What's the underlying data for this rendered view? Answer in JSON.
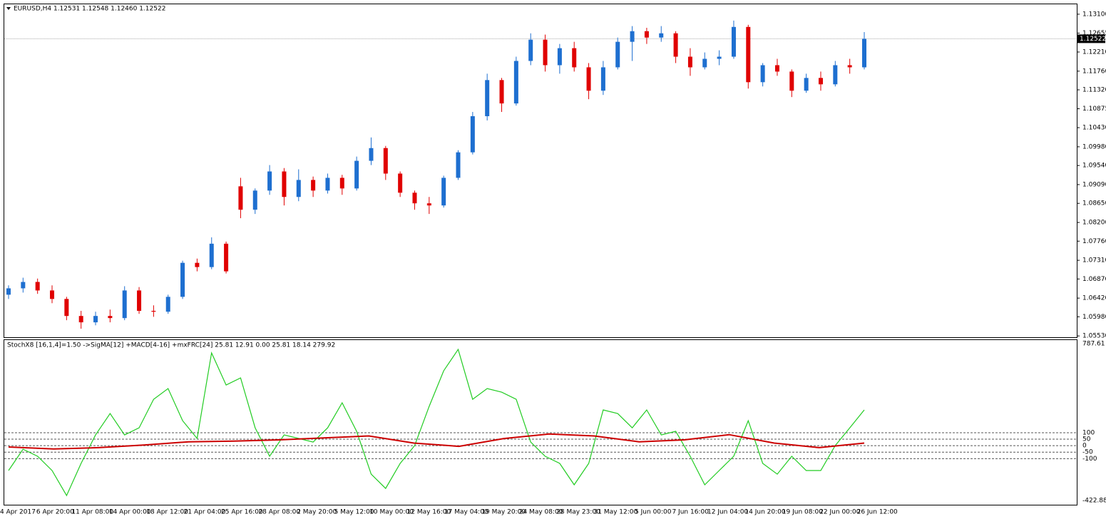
{
  "chart_data": [
    {
      "type": "candlestick",
      "title": "EURUSD,H4  1.12531 1.12548 1.12460 1.12522",
      "up_color": "#1e6fd0",
      "down_color": "#e00000",
      "ylim": [
        1.055,
        1.1335
      ],
      "yticks": [
        {
          "value": 1.131,
          "label": "1.13100"
        },
        {
          "value": 1.12655,
          "label": "1.12655"
        },
        {
          "value": 1.1221,
          "label": "1.12210"
        },
        {
          "value": 1.1176,
          "label": "1.11760"
        },
        {
          "value": 1.1132,
          "label": "1.11320"
        },
        {
          "value": 1.10875,
          "label": "1.10875"
        },
        {
          "value": 1.1043,
          "label": "1.10430"
        },
        {
          "value": 1.0998,
          "label": "1.09980"
        },
        {
          "value": 1.0954,
          "label": "1.09540"
        },
        {
          "value": 1.0909,
          "label": "1.09090"
        },
        {
          "value": 1.0865,
          "label": "1.08650"
        },
        {
          "value": 1.082,
          "label": "1.08200"
        },
        {
          "value": 1.0776,
          "label": "1.07760"
        },
        {
          "value": 1.0731,
          "label": "1.07310"
        },
        {
          "value": 1.0687,
          "label": "1.06870"
        },
        {
          "value": 1.0642,
          "label": "1.06420"
        },
        {
          "value": 1.0598,
          "label": "1.05980"
        },
        {
          "value": 1.0553,
          "label": "1.05530"
        }
      ],
      "current_price": {
        "value": 1.12522,
        "label": "1.12522"
      },
      "time_labels": [
        "4 Apr 2017",
        "6 Apr 20:00",
        "11 Apr 08:00",
        "14 Apr 00:00",
        "18 Apr 12:00",
        "21 Apr 04:00",
        "25 Apr 16:00",
        "28 Apr 08:00",
        "2 May 20:00",
        "5 May 12:00",
        "10 May 00:00",
        "12 May 16:00",
        "17 May 04:00",
        "19 May 20:00",
        "24 May 08:00",
        "28 May 23:00",
        "31 May 12:00",
        "5 Jun 00:00",
        "7 Jun 16:00",
        "12 Jun 04:00",
        "14 Jun 20:00",
        "19 Jun 08:00",
        "22 Jun 00:00",
        "26 Jun 12:00"
      ],
      "candles": [
        [
          1.065,
          1.0672,
          1.064,
          1.0665
        ],
        [
          1.0665,
          1.069,
          1.0655,
          1.068
        ],
        [
          1.068,
          1.0688,
          1.0652,
          1.066
        ],
        [
          1.066,
          1.0672,
          1.063,
          1.064
        ],
        [
          1.064,
          1.0645,
          1.059,
          1.06
        ],
        [
          1.06,
          1.0612,
          1.057,
          1.0585
        ],
        [
          1.0585,
          1.061,
          1.0578,
          1.06
        ],
        [
          1.06,
          1.0615,
          1.0585,
          1.0595
        ],
        [
          1.0595,
          1.067,
          1.059,
          1.066
        ],
        [
          1.066,
          1.0668,
          1.0605,
          1.0612
        ],
        [
          1.0612,
          1.0625,
          1.0598,
          1.061
        ],
        [
          1.061,
          1.065,
          1.0605,
          1.0645
        ],
        [
          1.0645,
          1.073,
          1.064,
          1.0725
        ],
        [
          1.0725,
          1.0735,
          1.0705,
          1.0715
        ],
        [
          1.0715,
          1.0785,
          1.071,
          1.077
        ],
        [
          1.077,
          1.0775,
          1.07,
          1.0705
        ],
        [
          1.0905,
          1.0925,
          1.083,
          1.085
        ],
        [
          1.085,
          1.09,
          1.084,
          1.0895
        ],
        [
          1.0895,
          1.0955,
          1.0885,
          1.094
        ],
        [
          1.094,
          1.0948,
          1.086,
          1.088
        ],
        [
          1.088,
          1.0945,
          1.087,
          1.092
        ],
        [
          1.092,
          1.0928,
          1.088,
          1.0895
        ],
        [
          1.0895,
          1.0935,
          1.0888,
          1.0925
        ],
        [
          1.0925,
          1.0932,
          1.0885,
          1.09
        ],
        [
          1.09,
          1.0975,
          1.0895,
          1.0965
        ],
        [
          1.0965,
          1.102,
          1.0955,
          1.0995
        ],
        [
          1.0995,
          1.1,
          1.092,
          1.0935
        ],
        [
          1.0935,
          1.094,
          1.088,
          1.089
        ],
        [
          1.089,
          1.0895,
          1.085,
          1.0865
        ],
        [
          1.0865,
          1.088,
          1.084,
          1.086
        ],
        [
          1.086,
          1.093,
          1.0855,
          1.0925
        ],
        [
          1.0925,
          1.099,
          1.092,
          1.0985
        ],
        [
          1.0985,
          1.108,
          1.098,
          1.107
        ],
        [
          1.107,
          1.117,
          1.106,
          1.1155
        ],
        [
          1.1155,
          1.116,
          1.108,
          1.11
        ],
        [
          1.11,
          1.121,
          1.1095,
          1.12
        ],
        [
          1.12,
          1.1265,
          1.119,
          1.125
        ],
        [
          1.125,
          1.1262,
          1.1175,
          1.119
        ],
        [
          1.119,
          1.124,
          1.117,
          1.123
        ],
        [
          1.123,
          1.1245,
          1.1175,
          1.1185
        ],
        [
          1.1185,
          1.1195,
          1.111,
          1.113
        ],
        [
          1.113,
          1.12,
          1.112,
          1.1185
        ],
        [
          1.1185,
          1.1255,
          1.118,
          1.1245
        ],
        [
          1.1245,
          1.1282,
          1.12,
          1.127
        ],
        [
          1.127,
          1.1278,
          1.124,
          1.1255
        ],
        [
          1.1255,
          1.1282,
          1.1245,
          1.1265
        ],
        [
          1.1265,
          1.127,
          1.1195,
          1.121
        ],
        [
          1.121,
          1.123,
          1.1165,
          1.1185
        ],
        [
          1.1185,
          1.122,
          1.118,
          1.1205
        ],
        [
          1.1205,
          1.1225,
          1.119,
          1.121
        ],
        [
          1.121,
          1.1295,
          1.1205,
          1.128
        ],
        [
          1.128,
          1.1285,
          1.1135,
          1.115
        ],
        [
          1.115,
          1.1195,
          1.114,
          1.119
        ],
        [
          1.119,
          1.1205,
          1.1165,
          1.1175
        ],
        [
          1.1175,
          1.118,
          1.1115,
          1.113
        ],
        [
          1.113,
          1.117,
          1.1125,
          1.116
        ],
        [
          1.116,
          1.1175,
          1.113,
          1.1145
        ],
        [
          1.1145,
          1.12,
          1.114,
          1.119
        ],
        [
          1.119,
          1.1205,
          1.117,
          1.1185
        ],
        [
          1.1185,
          1.1268,
          1.118,
          1.1252
        ]
      ]
    },
    {
      "type": "line",
      "title": "StochX8 [16,1,4]=1.50 ->SigMA[12] +MACD[4-16] +mxFRC[24] 25.81 12.91 0.00 25.81 18.14 279.92",
      "ylim": [
        -422.88,
        787.61
      ],
      "levels": [
        100,
        50,
        0,
        -50,
        -100
      ],
      "series": [
        {
          "color": "#22cc22",
          "values": [
            -192,
            -27,
            -82,
            -192,
            -385,
            -137,
            83,
            248,
            83,
            138,
            358,
            441,
            193,
            56,
            716,
            468,
            523,
            138,
            -82,
            83,
            56,
            28,
            138,
            331,
            111,
            -220,
            -330,
            -137,
            1,
            303,
            578,
            743,
            358,
            441,
            413,
            358,
            28,
            -82,
            -137,
            -302,
            -137,
            276,
            248,
            138,
            276,
            83,
            111,
            -82,
            -302,
            -192,
            -82,
            193,
            -137,
            -220,
            -82,
            -192,
            -192,
            1,
            138,
            276
          ]
        },
        {
          "color": "#cc0000",
          "values": [
            -10,
            -25,
            -15,
            5,
            30,
            35,
            45,
            60,
            75,
            20,
            -5,
            55,
            90,
            75,
            30,
            45,
            85,
            20,
            -15,
            20
          ]
        }
      ]
    }
  ]
}
